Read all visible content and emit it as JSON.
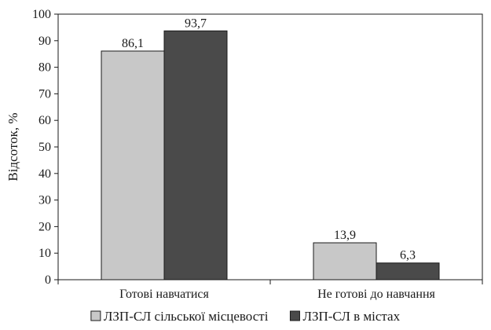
{
  "chart_data": {
    "type": "bar",
    "categories": [
      "Готові навчатися",
      "Не готові до навчання"
    ],
    "series": [
      {
        "name": "ЛЗП-СЛ сільської місцевості",
        "values": [
          86.1,
          13.9
        ],
        "labels": [
          "86,1",
          "13,9"
        ],
        "color": "#c8c8c8"
      },
      {
        "name": "ЛЗП-СЛ в містах",
        "values": [
          93.7,
          6.3
        ],
        "labels": [
          "93,7",
          "6,3"
        ],
        "color": "#4a4a4a"
      }
    ],
    "ylabel": "Відсоток, %",
    "xlabel": "",
    "ylim": [
      0,
      100
    ],
    "yticks": [
      0,
      10,
      20,
      30,
      40,
      50,
      60,
      70,
      80,
      90,
      100
    ],
    "grid": false,
    "legend_position": "bottom"
  }
}
